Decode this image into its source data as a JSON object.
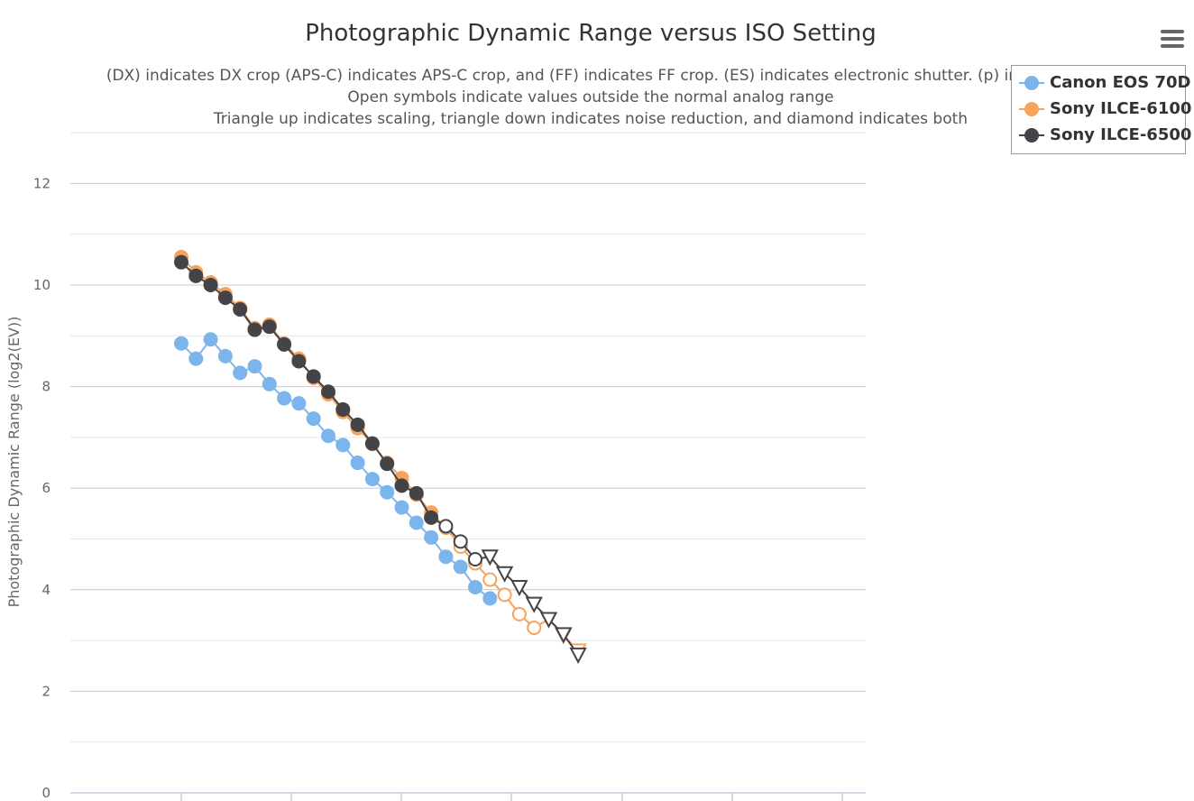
{
  "chart_data": {
    "type": "line",
    "title": "Photographic Dynamic Range versus ISO Setting",
    "subtitle": [
      "(DX) indicates DX crop (APS-C) indicates APS-C crop, and (FF) indicates FF crop. (ES) indicates electronic shutter. (p) indicated",
      "Open symbols indicate values outside the normal analog range",
      "Triangle up indicates scaling, triangle down indicates noise reduction, and diamond indicates both"
    ],
    "ylabel": "Photographic Dynamic Range (log2(EV))",
    "xlabel": "",
    "ylim": [
      0,
      13
    ],
    "yticks": [
      "0",
      "2",
      "4",
      "6",
      "8",
      "10",
      "12"
    ],
    "x_axis": "log2 ISO in 1/3 stop steps (tick labels not visible)",
    "grid": true,
    "legend_position": "top-right",
    "series": [
      {
        "name": "Canon EOS 70D",
        "color": "#7cb5ec",
        "points": [
          {
            "x": 0,
            "y": 8.85,
            "m": "circle"
          },
          {
            "x": 1,
            "y": 8.55,
            "m": "circle"
          },
          {
            "x": 2,
            "y": 8.93,
            "m": "circle"
          },
          {
            "x": 3,
            "y": 8.6,
            "m": "circle"
          },
          {
            "x": 4,
            "y": 8.27,
            "m": "circle"
          },
          {
            "x": 5,
            "y": 8.4,
            "m": "circle"
          },
          {
            "x": 6,
            "y": 8.05,
            "m": "circle"
          },
          {
            "x": 7,
            "y": 7.77,
            "m": "circle"
          },
          {
            "x": 8,
            "y": 7.67,
            "m": "circle"
          },
          {
            "x": 9,
            "y": 7.37,
            "m": "circle"
          },
          {
            "x": 10,
            "y": 7.03,
            "m": "circle"
          },
          {
            "x": 11,
            "y": 6.85,
            "m": "circle"
          },
          {
            "x": 12,
            "y": 6.5,
            "m": "circle"
          },
          {
            "x": 13,
            "y": 6.18,
            "m": "circle"
          },
          {
            "x": 14,
            "y": 5.92,
            "m": "circle"
          },
          {
            "x": 15,
            "y": 5.62,
            "m": "circle"
          },
          {
            "x": 16,
            "y": 5.32,
            "m": "circle"
          },
          {
            "x": 17,
            "y": 5.03,
            "m": "circle"
          },
          {
            "x": 18,
            "y": 4.65,
            "m": "circle"
          },
          {
            "x": 19,
            "y": 4.45,
            "m": "circle"
          },
          {
            "x": 20,
            "y": 4.05,
            "m": "circle"
          },
          {
            "x": 21,
            "y": 3.83,
            "m": "circle"
          }
        ]
      },
      {
        "name": "Sony ILCE-6100",
        "color": "#f7a35c",
        "points": [
          {
            "x": 0,
            "y": 10.55,
            "m": "circle"
          },
          {
            "x": 1,
            "y": 10.25,
            "m": "circle"
          },
          {
            "x": 2,
            "y": 10.05,
            "m": "circle"
          },
          {
            "x": 3,
            "y": 9.82,
            "m": "circle"
          },
          {
            "x": 4,
            "y": 9.55,
            "m": "circle"
          },
          {
            "x": 5,
            "y": 9.15,
            "m": "circle"
          },
          {
            "x": 6,
            "y": 9.22,
            "m": "circle"
          },
          {
            "x": 7,
            "y": 8.85,
            "m": "circle"
          },
          {
            "x": 8,
            "y": 8.55,
            "m": "circle"
          },
          {
            "x": 9,
            "y": 8.17,
            "m": "circle"
          },
          {
            "x": 10,
            "y": 7.85,
            "m": "circle"
          },
          {
            "x": 11,
            "y": 7.5,
            "m": "circle"
          },
          {
            "x": 12,
            "y": 7.18,
            "m": "circle"
          },
          {
            "x": 13,
            "y": 6.87,
            "m": "circle"
          },
          {
            "x": 14,
            "y": 6.5,
            "m": "circle"
          },
          {
            "x": 15,
            "y": 6.2,
            "m": "circle"
          },
          {
            "x": 16,
            "y": 5.87,
            "m": "circle"
          },
          {
            "x": 17,
            "y": 5.52,
            "m": "circle"
          },
          {
            "x": 18,
            "y": 5.22,
            "m": "circle-open"
          },
          {
            "x": 19,
            "y": 4.85,
            "m": "circle-open"
          },
          {
            "x": 20,
            "y": 4.52,
            "m": "circle-open"
          },
          {
            "x": 21,
            "y": 4.2,
            "m": "circle-open"
          },
          {
            "x": 22,
            "y": 3.9,
            "m": "circle-open"
          },
          {
            "x": 23,
            "y": 3.52,
            "m": "circle-open"
          },
          {
            "x": 24,
            "y": 3.25,
            "m": "circle-open"
          },
          {
            "x": 25,
            "y": 3.42,
            "m": "triangle-down-open"
          },
          {
            "x": 26,
            "y": 3.1,
            "m": "triangle-down-open"
          },
          {
            "x": 27,
            "y": 2.8,
            "m": "triangle-down-open"
          }
        ]
      },
      {
        "name": "Sony ILCE-6500",
        "color": "#434348",
        "points": [
          {
            "x": 0,
            "y": 10.45,
            "m": "circle"
          },
          {
            "x": 1,
            "y": 10.18,
            "m": "circle"
          },
          {
            "x": 2,
            "y": 10.0,
            "m": "circle"
          },
          {
            "x": 3,
            "y": 9.75,
            "m": "circle"
          },
          {
            "x": 4,
            "y": 9.52,
            "m": "circle"
          },
          {
            "x": 5,
            "y": 9.12,
            "m": "circle"
          },
          {
            "x": 6,
            "y": 9.18,
            "m": "circle"
          },
          {
            "x": 7,
            "y": 8.83,
            "m": "circle"
          },
          {
            "x": 8,
            "y": 8.5,
            "m": "circle"
          },
          {
            "x": 9,
            "y": 8.2,
            "m": "circle"
          },
          {
            "x": 10,
            "y": 7.9,
            "m": "circle"
          },
          {
            "x": 11,
            "y": 7.55,
            "m": "circle"
          },
          {
            "x": 12,
            "y": 7.25,
            "m": "circle"
          },
          {
            "x": 13,
            "y": 6.88,
            "m": "circle"
          },
          {
            "x": 14,
            "y": 6.48,
            "m": "circle"
          },
          {
            "x": 15,
            "y": 6.05,
            "m": "circle"
          },
          {
            "x": 16,
            "y": 5.9,
            "m": "circle"
          },
          {
            "x": 17,
            "y": 5.42,
            "m": "circle"
          },
          {
            "x": 18,
            "y": 5.25,
            "m": "circle-open"
          },
          {
            "x": 19,
            "y": 4.95,
            "m": "circle-open"
          },
          {
            "x": 20,
            "y": 4.6,
            "m": "circle-open"
          },
          {
            "x": 21,
            "y": 4.65,
            "m": "triangle-down-open"
          },
          {
            "x": 22,
            "y": 4.32,
            "m": "triangle-down-open"
          },
          {
            "x": 23,
            "y": 4.05,
            "m": "triangle-down-open"
          },
          {
            "x": 24,
            "y": 3.72,
            "m": "triangle-down-open"
          },
          {
            "x": 25,
            "y": 3.42,
            "m": "triangle-down-open"
          },
          {
            "x": 26,
            "y": 3.12,
            "m": "triangle-down-open"
          },
          {
            "x": 27,
            "y": 2.72,
            "m": "triangle-down-open"
          }
        ]
      }
    ]
  },
  "toolbar": {
    "menu_icon": "hamburger-menu-icon"
  }
}
